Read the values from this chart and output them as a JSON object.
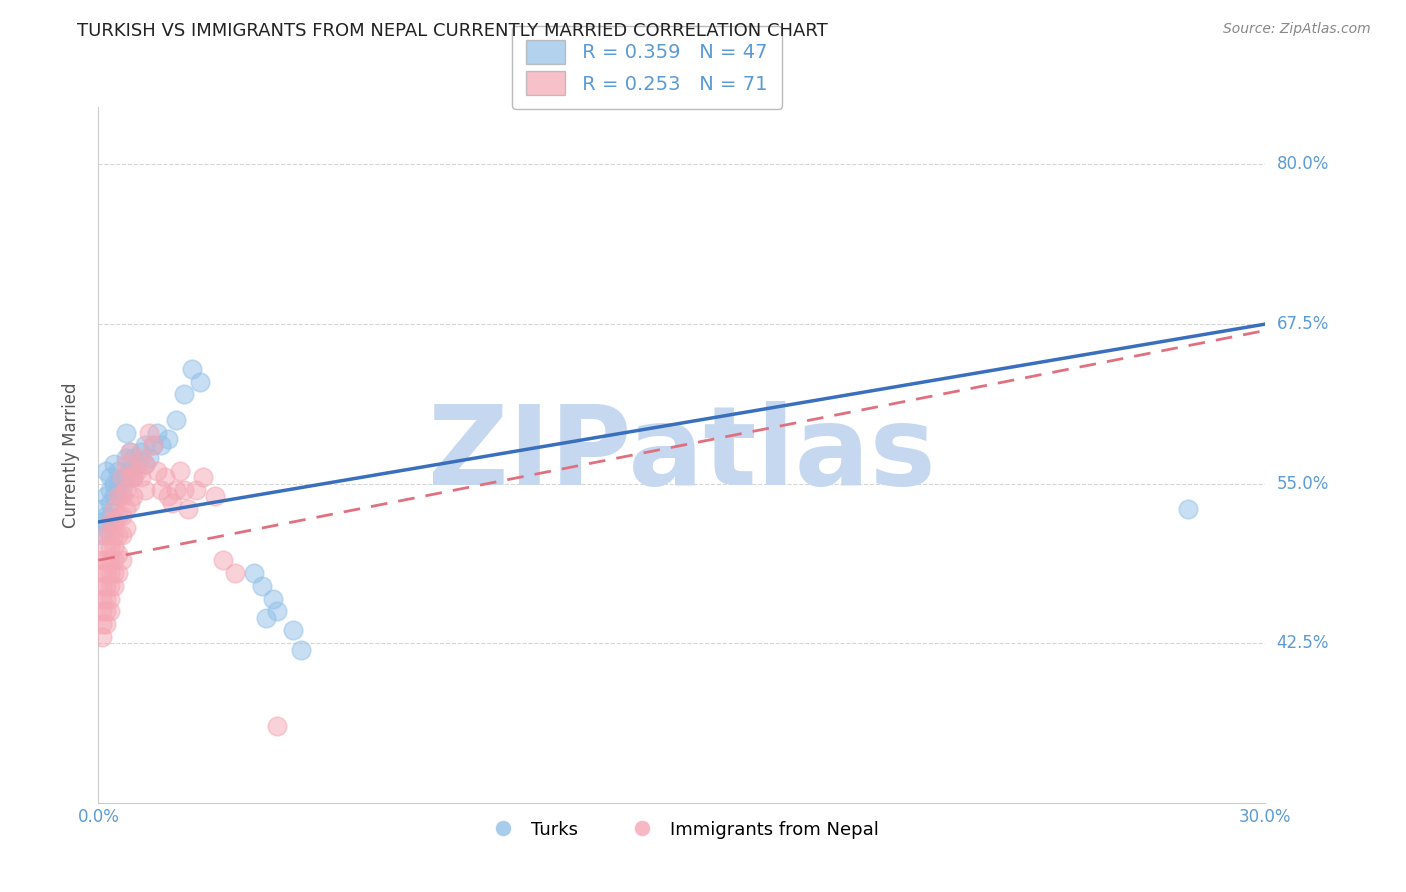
{
  "title": "TURKISH VS IMMIGRANTS FROM NEPAL CURRENTLY MARRIED CORRELATION CHART",
  "source": "Source: ZipAtlas.com",
  "ylabel": "Currently Married",
  "y_tick_labels": [
    "42.5%",
    "55.0%",
    "67.5%",
    "80.0%"
  ],
  "y_tick_values": [
    0.425,
    0.55,
    0.675,
    0.8
  ],
  "x_lim": [
    0.0,
    0.3
  ],
  "y_lim": [
    0.3,
    0.845
  ],
  "legend_entries": [
    {
      "label": "Turks",
      "R": "0.359",
      "N": "47",
      "color": "#92c0e8"
    },
    {
      "label": "Immigrants from Nepal",
      "R": "0.253",
      "N": "71",
      "color": "#f4a7b4"
    }
  ],
  "blue_scatter": [
    [
      0.001,
      0.53
    ],
    [
      0.001,
      0.52
    ],
    [
      0.001,
      0.51
    ],
    [
      0.002,
      0.54
    ],
    [
      0.002,
      0.525
    ],
    [
      0.002,
      0.515
    ],
    [
      0.002,
      0.56
    ],
    [
      0.003,
      0.555
    ],
    [
      0.003,
      0.545
    ],
    [
      0.003,
      0.535
    ],
    [
      0.003,
      0.525
    ],
    [
      0.004,
      0.565
    ],
    [
      0.004,
      0.55
    ],
    [
      0.004,
      0.54
    ],
    [
      0.005,
      0.56
    ],
    [
      0.005,
      0.55
    ],
    [
      0.005,
      0.54
    ],
    [
      0.006,
      0.555
    ],
    [
      0.006,
      0.545
    ],
    [
      0.007,
      0.59
    ],
    [
      0.007,
      0.57
    ],
    [
      0.007,
      0.555
    ],
    [
      0.008,
      0.575
    ],
    [
      0.008,
      0.56
    ],
    [
      0.009,
      0.57
    ],
    [
      0.009,
      0.555
    ],
    [
      0.01,
      0.565
    ],
    [
      0.011,
      0.575
    ],
    [
      0.012,
      0.58
    ],
    [
      0.012,
      0.565
    ],
    [
      0.013,
      0.57
    ],
    [
      0.014,
      0.58
    ],
    [
      0.015,
      0.59
    ],
    [
      0.016,
      0.58
    ],
    [
      0.018,
      0.585
    ],
    [
      0.02,
      0.6
    ],
    [
      0.022,
      0.62
    ],
    [
      0.024,
      0.64
    ],
    [
      0.026,
      0.63
    ],
    [
      0.04,
      0.48
    ],
    [
      0.042,
      0.47
    ],
    [
      0.043,
      0.445
    ],
    [
      0.045,
      0.46
    ],
    [
      0.046,
      0.45
    ],
    [
      0.28,
      0.53
    ],
    [
      0.05,
      0.435
    ],
    [
      0.052,
      0.42
    ]
  ],
  "pink_scatter": [
    [
      0.001,
      0.49
    ],
    [
      0.001,
      0.48
    ],
    [
      0.001,
      0.47
    ],
    [
      0.001,
      0.46
    ],
    [
      0.001,
      0.45
    ],
    [
      0.001,
      0.44
    ],
    [
      0.001,
      0.43
    ],
    [
      0.002,
      0.51
    ],
    [
      0.002,
      0.5
    ],
    [
      0.002,
      0.49
    ],
    [
      0.002,
      0.48
    ],
    [
      0.002,
      0.47
    ],
    [
      0.002,
      0.46
    ],
    [
      0.002,
      0.45
    ],
    [
      0.002,
      0.44
    ],
    [
      0.003,
      0.52
    ],
    [
      0.003,
      0.51
    ],
    [
      0.003,
      0.5
    ],
    [
      0.003,
      0.49
    ],
    [
      0.003,
      0.48
    ],
    [
      0.003,
      0.47
    ],
    [
      0.003,
      0.46
    ],
    [
      0.003,
      0.45
    ],
    [
      0.004,
      0.53
    ],
    [
      0.004,
      0.52
    ],
    [
      0.004,
      0.51
    ],
    [
      0.004,
      0.5
    ],
    [
      0.004,
      0.49
    ],
    [
      0.004,
      0.48
    ],
    [
      0.004,
      0.47
    ],
    [
      0.005,
      0.54
    ],
    [
      0.005,
      0.525
    ],
    [
      0.005,
      0.51
    ],
    [
      0.005,
      0.495
    ],
    [
      0.005,
      0.48
    ],
    [
      0.006,
      0.555
    ],
    [
      0.006,
      0.54
    ],
    [
      0.006,
      0.525
    ],
    [
      0.006,
      0.51
    ],
    [
      0.006,
      0.49
    ],
    [
      0.007,
      0.565
    ],
    [
      0.007,
      0.545
    ],
    [
      0.007,
      0.53
    ],
    [
      0.007,
      0.515
    ],
    [
      0.008,
      0.575
    ],
    [
      0.008,
      0.555
    ],
    [
      0.008,
      0.535
    ],
    [
      0.009,
      0.555
    ],
    [
      0.009,
      0.54
    ],
    [
      0.01,
      0.56
    ],
    [
      0.011,
      0.57
    ],
    [
      0.011,
      0.555
    ],
    [
      0.012,
      0.565
    ],
    [
      0.012,
      0.545
    ],
    [
      0.013,
      0.59
    ],
    [
      0.014,
      0.58
    ],
    [
      0.015,
      0.56
    ],
    [
      0.016,
      0.545
    ],
    [
      0.017,
      0.555
    ],
    [
      0.018,
      0.54
    ],
    [
      0.019,
      0.535
    ],
    [
      0.02,
      0.545
    ],
    [
      0.021,
      0.56
    ],
    [
      0.022,
      0.545
    ],
    [
      0.023,
      0.53
    ],
    [
      0.025,
      0.545
    ],
    [
      0.027,
      0.555
    ],
    [
      0.03,
      0.54
    ],
    [
      0.032,
      0.49
    ],
    [
      0.035,
      0.48
    ],
    [
      0.046,
      0.36
    ]
  ],
  "blue_line": {
    "x0": 0.0,
    "y0": 0.52,
    "x1": 0.3,
    "y1": 0.675
  },
  "pink_line": {
    "x0": 0.0,
    "y0": 0.49,
    "x1": 0.3,
    "y1": 0.67
  },
  "watermark": "ZIPatlas",
  "watermark_color": "#c5d8f0",
  "background_color": "#ffffff",
  "title_color": "#222222",
  "ylabel_color": "#555555",
  "tick_label_color": "#5b9bd5",
  "grid_color": "#cccccc",
  "title_fontsize": 13,
  "axis_label_fontsize": 12,
  "tick_fontsize": 12,
  "legend_fontsize": 14,
  "source_fontsize": 10
}
